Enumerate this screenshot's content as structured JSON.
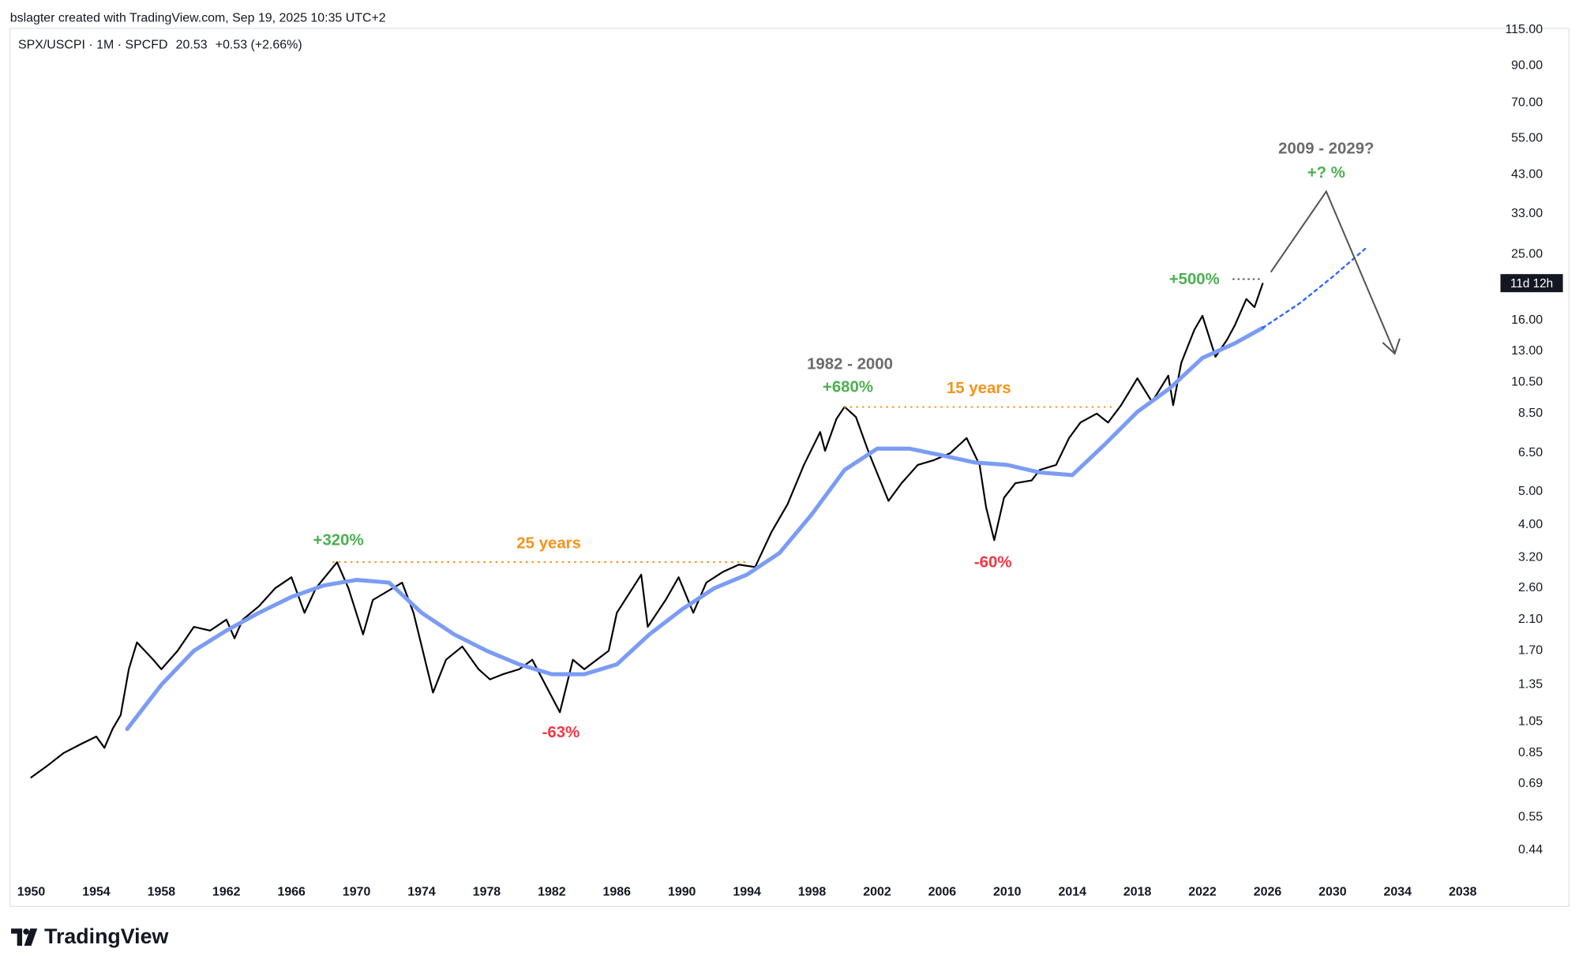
{
  "chart_data": {
    "type": "line",
    "header": "bslagter created with TradingView.com, Sep 19, 2025 10:35 UTC+2",
    "legend": {
      "symbol": "SPX/USCPI · 1M · SPCFD",
      "price": "20.53",
      "change": "+0.53 (+2.66%)"
    },
    "countdown": "11d 12h",
    "logo": "TradingView",
    "annotations": [
      "+320%",
      "25 years",
      "-63%",
      "1982 - 2000",
      "+680%",
      "15 years",
      "-60%",
      "+500%",
      "2009 - 2029?",
      "+? %"
    ],
    "log_scale": true,
    "grid": false,
    "xlim": [
      1948.7,
      2039.7
    ],
    "xticks": [
      1950,
      1954,
      1958,
      1962,
      1966,
      1970,
      1974,
      1978,
      1982,
      1986,
      1990,
      1994,
      1998,
      2002,
      2006,
      2010,
      2014,
      2018,
      2022,
      2026,
      2030,
      2034,
      2038
    ],
    "ylim": [
      0.3,
      116
    ],
    "yticks": [
      {
        "value": 0.44,
        "label": "0.44"
      },
      {
        "value": 0.55,
        "label": "0.55"
      },
      {
        "value": 0.69,
        "label": "0.69"
      },
      {
        "value": 0.85,
        "label": "0.85"
      },
      {
        "value": 1.05,
        "label": "1.05"
      },
      {
        "value": 1.35,
        "label": "1.35"
      },
      {
        "value": 1.7,
        "label": "1.70"
      },
      {
        "value": 2.1,
        "label": "2.10"
      },
      {
        "value": 2.6,
        "label": "2.60"
      },
      {
        "value": 3.2,
        "label": "3.20"
      },
      {
        "value": 4,
        "label": "4.00"
      },
      {
        "value": 5,
        "label": "5.00"
      },
      {
        "value": 6.5,
        "label": "6.50"
      },
      {
        "value": 8.5,
        "label": "8.50"
      },
      {
        "value": 10.5,
        "label": "10.50"
      },
      {
        "value": 13,
        "label": "13.00"
      },
      {
        "value": 16,
        "label": "16.00"
      },
      {
        "value": 25,
        "label": "25.00"
      },
      {
        "value": 33,
        "label": "33.00"
      },
      {
        "value": 43,
        "label": "43.00"
      },
      {
        "value": 55,
        "label": "55.00"
      },
      {
        "value": 70,
        "label": "70.00"
      },
      {
        "value": 90,
        "label": "90.00"
      },
      {
        "value": 115,
        "label": "115.00"
      }
    ],
    "series": [
      {
        "color": "#000000",
        "line_style": "solid",
        "x": [
          1950,
          1951,
          1952,
          1953,
          1954,
          1954.5,
          1955,
          1955.5,
          1956,
          1956.5,
          1957.5,
          1958,
          1959,
          1960,
          1961,
          1962,
          1962.5,
          1963,
          1964,
          1965,
          1966,
          1966.8,
          1967.5,
          1968.8,
          1969.5,
          1970.4,
          1971,
          1972.8,
          1973.5,
          1974.7,
          1975.5,
          1976.5,
          1977.5,
          1978.2,
          1979,
          1980,
          1980.8,
          1982.5,
          1983.3,
          1984,
          1985.5,
          1986,
          1987.5,
          1987.9,
          1989,
          1989.8,
          1990.7,
          1991.5,
          1992.5,
          1993.5,
          1994.5,
          1995.5,
          1996.5,
          1997.5,
          1998.5,
          1998.8,
          1999.5,
          2000,
          2000.7,
          2001.5,
          2002.7,
          2003.5,
          2004.5,
          2005.5,
          2006.5,
          2007.5,
          2008.3,
          2008.7,
          2009.2,
          2009.8,
          2010.5,
          2011.5,
          2012,
          2013,
          2013.8,
          2014.5,
          2015.5,
          2016.2,
          2017,
          2018,
          2018.9,
          2019.9,
          2020.2,
          2020.7,
          2021.5,
          2022,
          2022.8,
          2023.5,
          2024,
          2024.7,
          2025.2,
          2025.7
        ],
        "values": [
          0.72,
          0.78,
          0.85,
          0.9,
          0.95,
          0.88,
          1.0,
          1.1,
          1.5,
          1.8,
          1.6,
          1.5,
          1.7,
          2.0,
          1.95,
          2.1,
          1.85,
          2.1,
          2.3,
          2.6,
          2.8,
          2.2,
          2.6,
          3.1,
          2.6,
          1.9,
          2.4,
          2.7,
          2.2,
          1.28,
          1.6,
          1.75,
          1.5,
          1.4,
          1.45,
          1.5,
          1.6,
          1.12,
          1.6,
          1.5,
          1.7,
          2.2,
          2.85,
          2.0,
          2.4,
          2.8,
          2.2,
          2.7,
          2.9,
          3.05,
          3.0,
          3.8,
          4.6,
          6.0,
          7.5,
          6.6,
          8.2,
          8.9,
          8.3,
          6.5,
          4.7,
          5.3,
          6.0,
          6.2,
          6.5,
          7.2,
          6.0,
          4.5,
          3.6,
          4.8,
          5.3,
          5.4,
          5.8,
          6.0,
          7.2,
          8.0,
          8.5,
          8.0,
          9.0,
          10.8,
          9.2,
          11.0,
          9.0,
          12.0,
          15.0,
          16.5,
          12.5,
          14.0,
          15.5,
          18.5,
          17.5,
          20.53
        ]
      },
      {
        "color": "#7b9cf5",
        "line_style": "solid",
        "x": [
          1955.9,
          1958,
          1960,
          1962,
          1964,
          1966,
          1968,
          1970,
          1972,
          1974,
          1976,
          1978,
          1980,
          1982,
          1984,
          1986,
          1988,
          1990,
          1992,
          1994,
          1996,
          1998,
          2000,
          2002,
          2004,
          2006,
          2008,
          2010,
          2012,
          2014,
          2016,
          2018,
          2020,
          2022,
          2024,
          2025.7
        ],
        "values": [
          1.0,
          1.35,
          1.7,
          1.95,
          2.2,
          2.45,
          2.65,
          2.75,
          2.7,
          2.2,
          1.9,
          1.7,
          1.55,
          1.45,
          1.45,
          1.55,
          1.9,
          2.25,
          2.6,
          2.85,
          3.3,
          4.3,
          5.8,
          6.7,
          6.7,
          6.4,
          6.1,
          6.0,
          5.7,
          5.6,
          6.9,
          8.6,
          10.1,
          12.4,
          13.7,
          15.2
        ]
      },
      {
        "color": "#2962ff",
        "line_style": "dashed",
        "x": [
          2025.7,
          2028,
          2030,
          2032
        ],
        "values": [
          15.2,
          18,
          21.5,
          26
        ]
      }
    ]
  }
}
